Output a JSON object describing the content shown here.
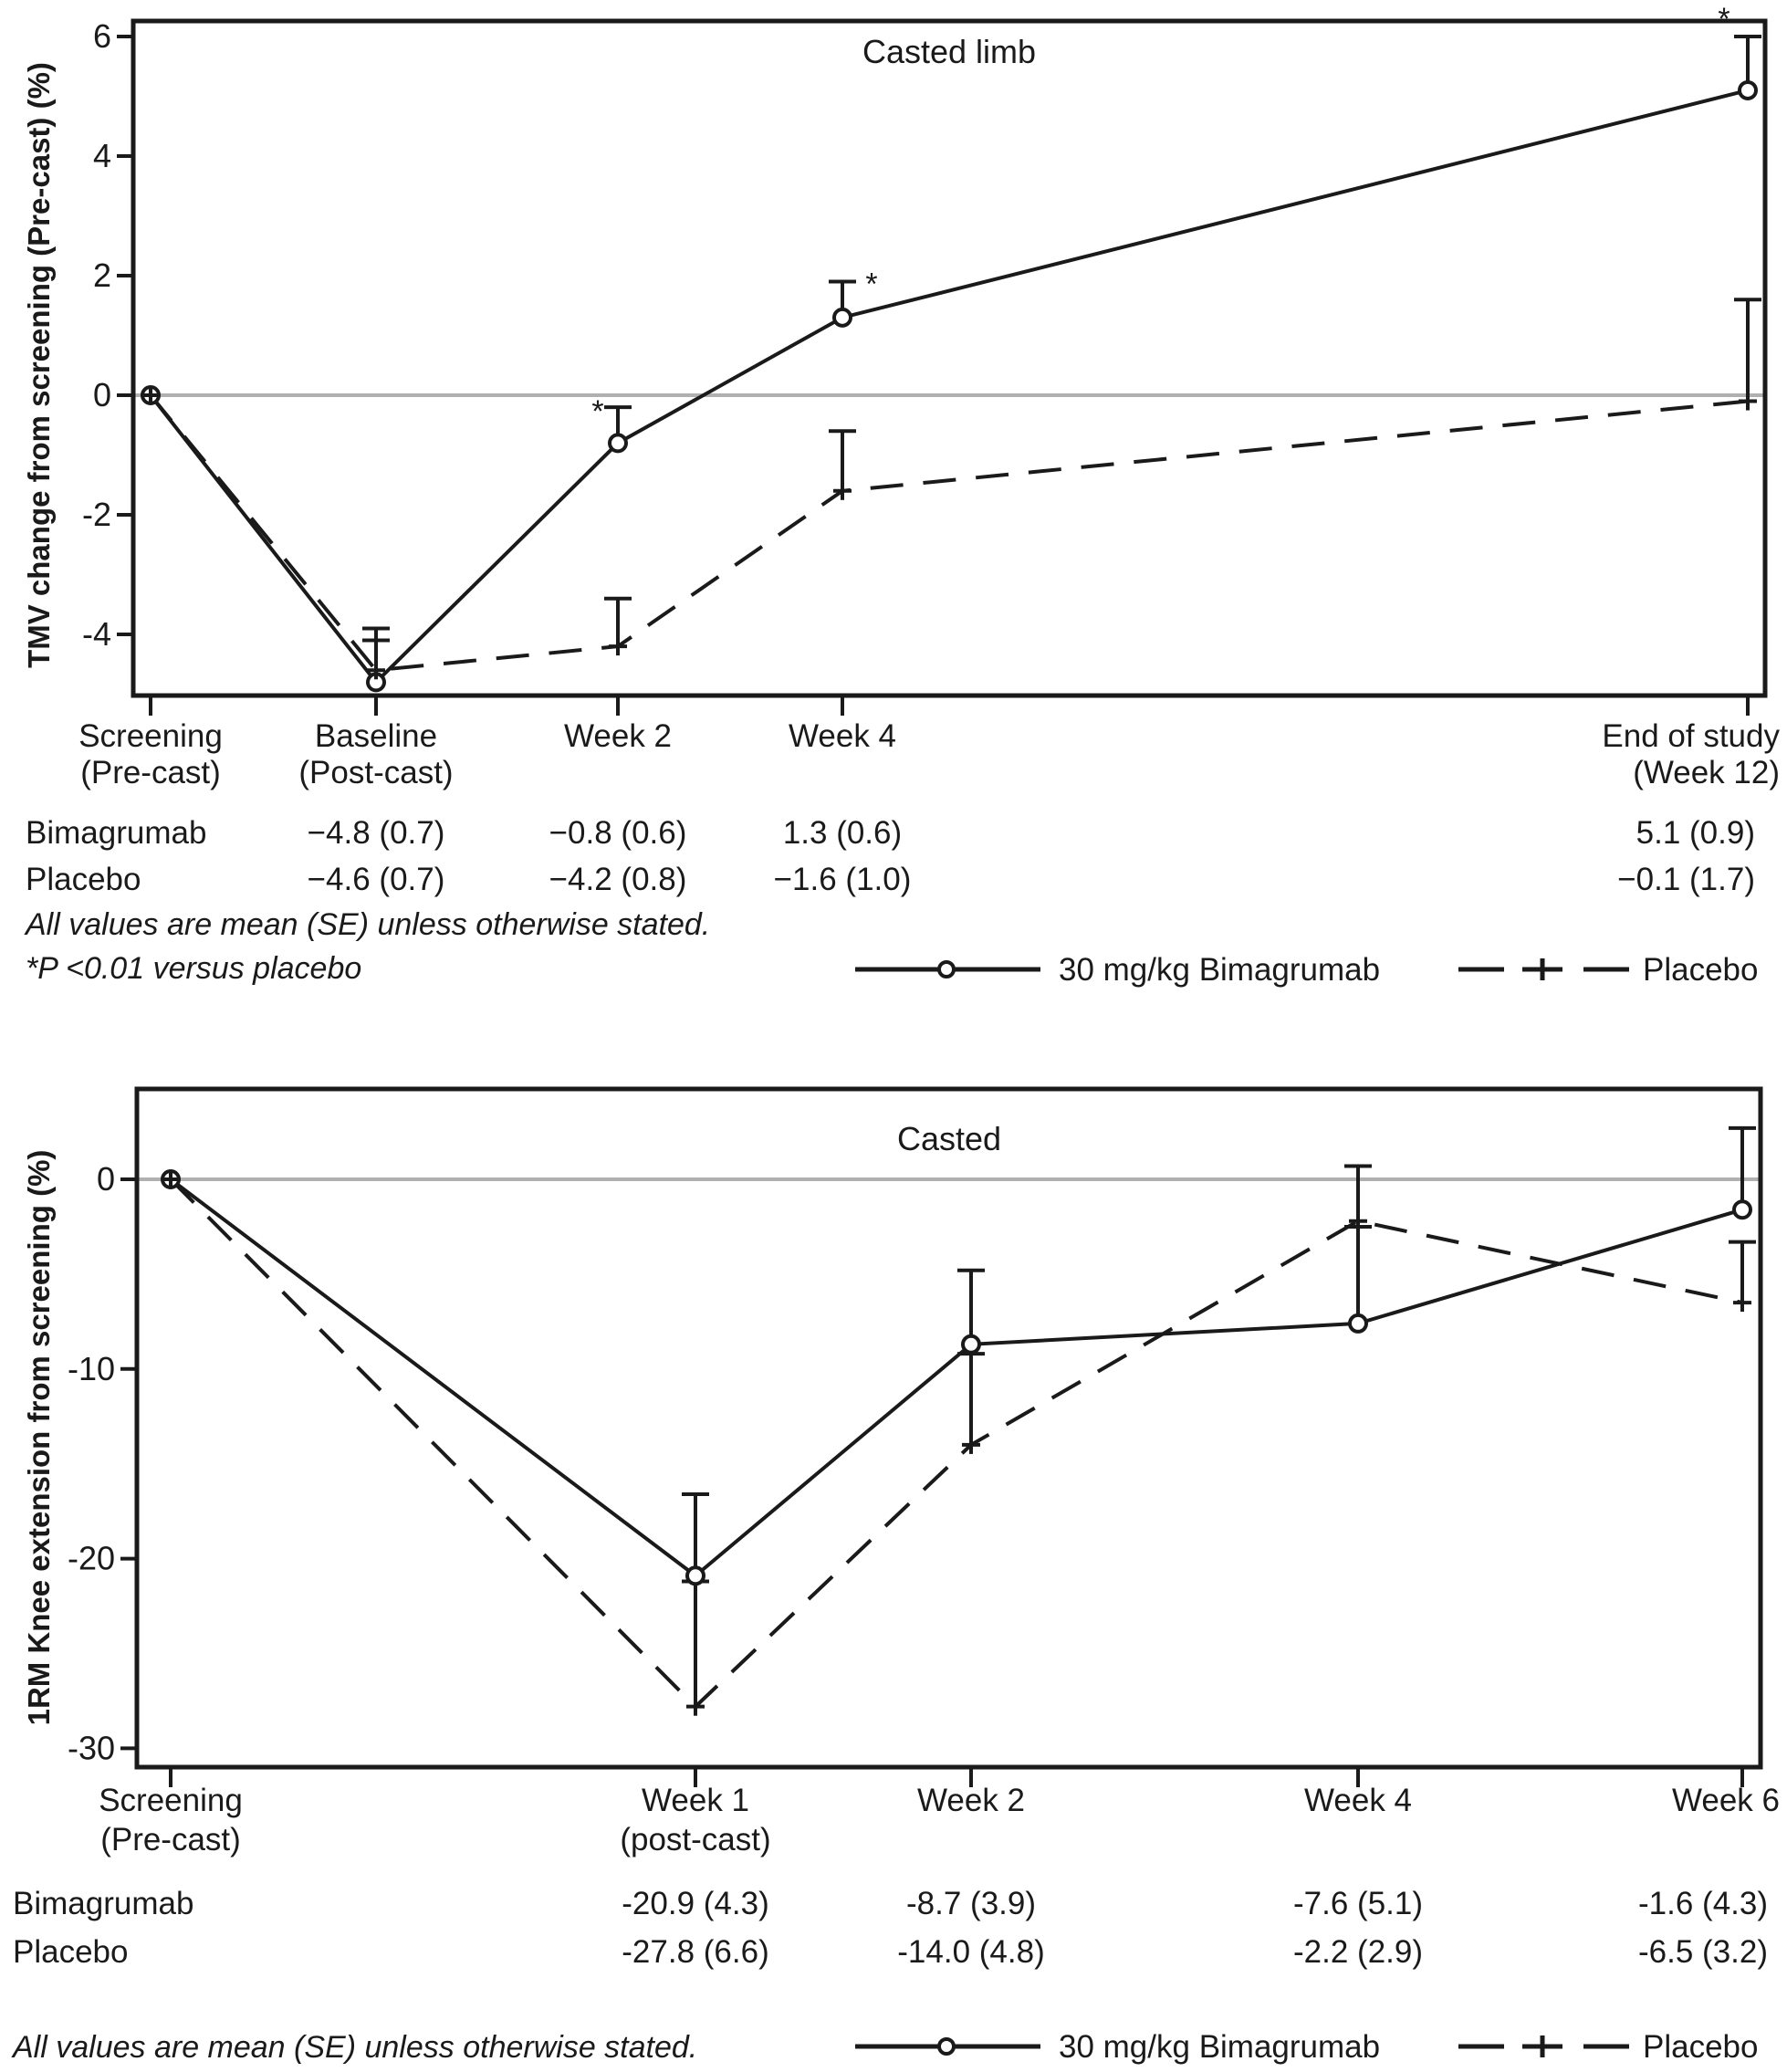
{
  "chart_data": [
    {
      "type": "line",
      "title": "Casted limb",
      "xlabel": "",
      "ylabel": "TMV change from screening (Pre-cast) (%)",
      "ylim": [
        -5.05,
        6.3
      ],
      "yticks": [
        6,
        4,
        2,
        0,
        -2,
        -4
      ],
      "ytick_labels": [
        "6",
        "4",
        "2",
        "0",
        "-2",
        "-4"
      ],
      "reference_line": 0,
      "categories": [
        [
          "Screening",
          "(Pre-cast)"
        ],
        [
          "Baseline",
          "(Post-cast)"
        ],
        [
          "Week 2"
        ],
        [
          "Week 4"
        ],
        [
          "End of study",
          "(Week 12)"
        ]
      ],
      "x": [
        0,
        1,
        2.8,
        3.65,
        7.1
      ],
      "series": [
        {
          "name": "30 mg/kg Bimagrumab",
          "style": "solid",
          "marker": "circle",
          "values": [
            0,
            -4.8,
            -0.8,
            1.3,
            5.1
          ],
          "se": [
            null,
            0.7,
            0.6,
            0.6,
            0.9
          ],
          "significant": [
            false,
            false,
            true,
            true,
            true
          ]
        },
        {
          "name": "Placebo",
          "style": "dashed",
          "marker": "plus",
          "values": [
            0,
            -4.6,
            -4.2,
            -1.6,
            -0.1
          ],
          "se": [
            null,
            0.7,
            0.8,
            1.0,
            1.7
          ]
        }
      ],
      "table": {
        "rows": [
          {
            "label": "Bimagrumab",
            "cells": [
              "",
              "−4.8 (0.7)",
              "−0.8 (0.6)",
              "1.3 (0.6)",
              "5.1 (0.9)"
            ]
          },
          {
            "label": "Placebo",
            "cells": [
              "",
              "−4.6 (0.7)",
              "−4.2 (0.8)",
              "−1.6 (1.0)",
              "−0.1 (1.7)"
            ]
          }
        ]
      },
      "notes": [
        "All values are mean (SE) unless otherwise stated.",
        "*P <0.01 versus placebo"
      ],
      "significance_marker": "*",
      "legend": {
        "position": "bottom-right",
        "entries": [
          "30 mg/kg Bimagrumab",
          "Placebo"
        ]
      }
    },
    {
      "type": "line",
      "title": "Casted",
      "xlabel": "",
      "ylabel": "1RM Knee extension from screening (%)",
      "ylim": [
        -31,
        4.8
      ],
      "yticks": [
        0,
        -10,
        -20,
        -30
      ],
      "ytick_labels": [
        "0",
        "-10",
        "-20",
        "-30"
      ],
      "reference_line": 0,
      "categories": [
        [
          "Screening",
          "(Pre-cast)"
        ],
        [
          "Week 1",
          "(post-cast)"
        ],
        [
          "Week 2"
        ],
        [
          "Week 4"
        ],
        [
          "Week 6"
        ]
      ],
      "x": [
        0,
        1,
        1.525,
        2.26,
        3.175
      ],
      "series": [
        {
          "name": "30 mg/kg Bimagrumab",
          "style": "solid",
          "marker": "circle",
          "values": [
            0,
            -20.9,
            -8.7,
            -7.6,
            -1.6
          ],
          "se": [
            null,
            4.3,
            3.9,
            5.1,
            4.3
          ]
        },
        {
          "name": "Placebo",
          "style": "dashed",
          "marker": "plus",
          "values": [
            0,
            -27.8,
            -14.0,
            -2.2,
            -6.5
          ],
          "se": [
            null,
            6.6,
            4.8,
            2.9,
            3.2
          ]
        }
      ],
      "table": {
        "rows": [
          {
            "label": "Bimagrumab",
            "cells": [
              "",
              "-20.9 (4.3)",
              "-8.7 (3.9)",
              "-7.6 (5.1)",
              "-1.6 (4.3)"
            ]
          },
          {
            "label": "Placebo",
            "cells": [
              "",
              "-27.8 (6.6)",
              "-14.0 (4.8)",
              "-2.2 (2.9)",
              "-6.5 (3.2)"
            ]
          }
        ]
      },
      "notes": [
        "All values are mean (SE) unless otherwise stated."
      ],
      "legend": {
        "position": "bottom-right",
        "entries": [
          "30 mg/kg Bimagrumab",
          "Placebo"
        ]
      }
    }
  ],
  "colors": {
    "ink": "#1a1a1a",
    "reference_line": "#b0b0b0"
  }
}
